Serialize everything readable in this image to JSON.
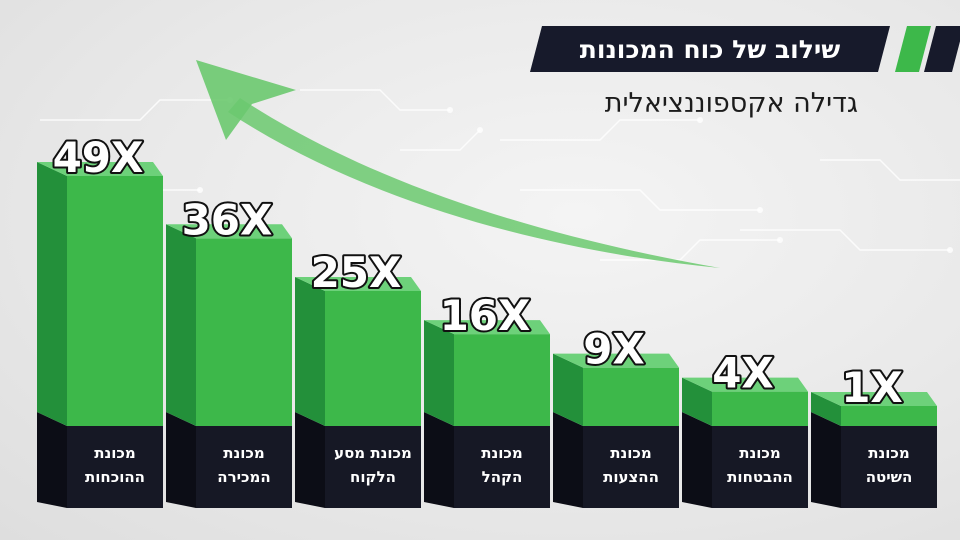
{
  "header": {
    "title": "שילוב של כוח המכונות",
    "subtitle": "גדילה אקספוננציאלית"
  },
  "colors": {
    "green_front": "#3db84a",
    "green_side": "#23903a",
    "green_top": "#6dd17a",
    "dark_base": "#161825",
    "dark_side": "#0c0d16",
    "arrow": "#6bc96f"
  },
  "chart_data": {
    "type": "bar",
    "categories": [
      [
        "מכונת",
        "ההוכחות"
      ],
      [
        "מכונת",
        "המכירה"
      ],
      [
        "מכונת מסע",
        "הלקוח"
      ],
      [
        "מכונת",
        "הקהל"
      ],
      [
        "מכונת",
        "ההצעות"
      ],
      [
        "מכונת",
        "ההבטחות"
      ],
      [
        "מכונת",
        "השיטה"
      ]
    ],
    "values": [
      49,
      36,
      25,
      16,
      9,
      4,
      1
    ],
    "data_labels": [
      "49X",
      "36X",
      "25X",
      "16X",
      "9X",
      "4X",
      "1X"
    ],
    "ylim": [
      0,
      49
    ],
    "grid": false,
    "trend_arrow": true
  }
}
